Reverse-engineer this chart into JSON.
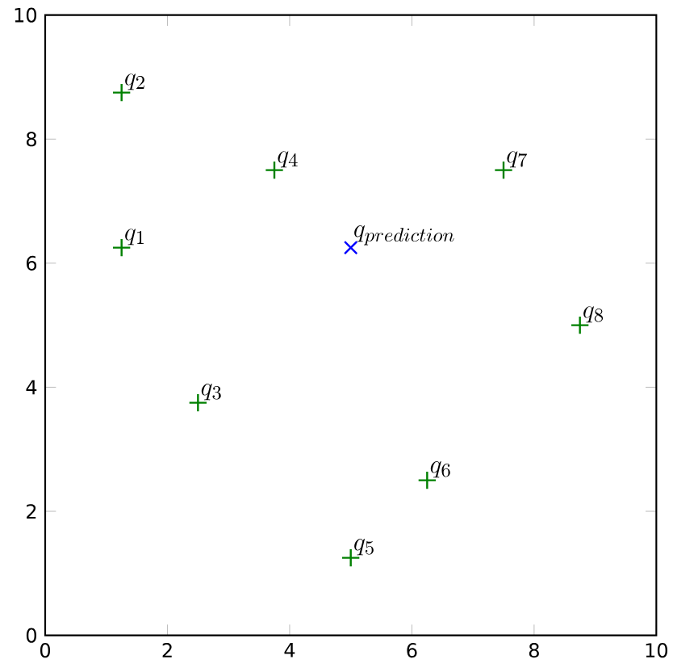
{
  "chart_data": {
    "type": "scatter",
    "xlim": [
      0,
      10
    ],
    "ylim": [
      0,
      10
    ],
    "xticks": [
      0,
      2,
      4,
      6,
      8,
      10
    ],
    "yticks": [
      0,
      2,
      4,
      6,
      8,
      10
    ],
    "grid": false,
    "series": [
      {
        "color": "#008000",
        "marker": "plus",
        "x": [
          1.25,
          1.25,
          2.5,
          3.75,
          5,
          6.25,
          7.5,
          8.75
        ],
        "values": [
          6.25,
          8.75,
          3.75,
          7.5,
          1.25,
          2.5,
          7.5,
          5
        ]
      },
      {
        "color": "#0000ff",
        "marker": "cross",
        "x": [
          5
        ],
        "values": [
          6.25
        ]
      }
    ],
    "annotations": [
      {
        "text": "q_{1}",
        "x": 1.25,
        "y": 6.25
      },
      {
        "text": "q_{2}",
        "x": 1.25,
        "y": 8.75
      },
      {
        "text": "q_{3}",
        "x": 2.5,
        "y": 3.75
      },
      {
        "text": "q_{4}",
        "x": 3.75,
        "y": 7.5
      },
      {
        "text": "q_{5}",
        "x": 5,
        "y": 1.25
      },
      {
        "text": "q_{6}",
        "x": 6.25,
        "y": 2.5
      },
      {
        "text": "q_{7}",
        "x": 7.5,
        "y": 7.5
      },
      {
        "text": "q_{8}",
        "x": 8.75,
        "y": 5
      },
      {
        "text": "q_{prediction}",
        "x": 5,
        "y": 6.25
      }
    ]
  }
}
